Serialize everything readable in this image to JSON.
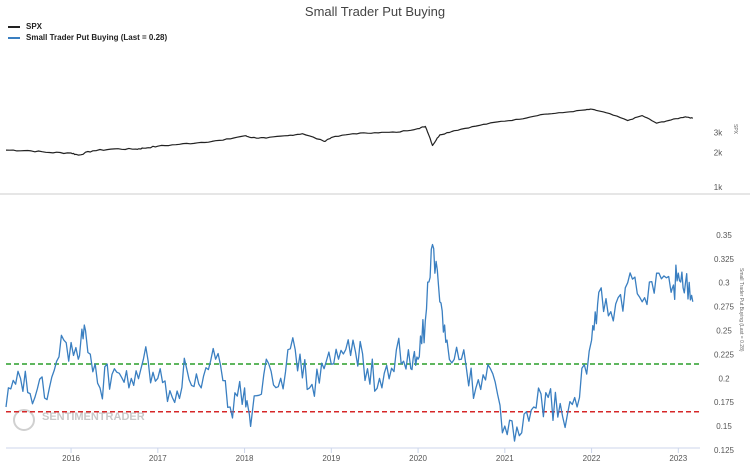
{
  "chart_data": [
    {
      "type": "line",
      "title": "Small Trader Put Buying",
      "series": [
        {
          "name": "SPX",
          "color": "#222222",
          "x": [
            "2015-04",
            "2015-07",
            "2015-10",
            "2016-01",
            "2016-02",
            "2016-04",
            "2016-07",
            "2016-10",
            "2016-11",
            "2017-01",
            "2017-04",
            "2017-07",
            "2017-10",
            "2018-01",
            "2018-02",
            "2018-04",
            "2018-07",
            "2018-09",
            "2018-12",
            "2019-01",
            "2019-04",
            "2019-07",
            "2019-10",
            "2020-01",
            "2020-02",
            "2020-03",
            "2020-04",
            "2020-06",
            "2020-09",
            "2020-12",
            "2021-03",
            "2021-06",
            "2021-09",
            "2021-12",
            "2022-01",
            "2022-03",
            "2022-06",
            "2022-08",
            "2022-10",
            "2022-12",
            "2023-02",
            "2023-03"
          ],
          "values": [
            2100,
            2080,
            2000,
            1980,
            1900,
            2070,
            2150,
            2140,
            2180,
            2270,
            2360,
            2450,
            2560,
            2800,
            2700,
            2670,
            2810,
            2920,
            2500,
            2700,
            2920,
            2980,
            3000,
            3230,
            3380,
            2300,
            2850,
            3100,
            3400,
            3700,
            3900,
            4280,
            4450,
            4700,
            4770,
            4450,
            3800,
            4200,
            3600,
            3850,
            4100,
            3980
          ],
          "axis": {
            "ticks": [
              1000,
              2000,
              3000
            ],
            "tick_labels": [
              "1k",
              "2k",
              "3k"
            ],
            "log_scale": true,
            "label": "SPX"
          }
        },
        {
          "name": "Small Trader Put Buying (Last = 0.28)",
          "color": "#3a7fc1",
          "last_value": 0.28,
          "x": [
            "2015-04",
            "2015-06",
            "2015-08",
            "2015-10",
            "2015-12",
            "2016-02",
            "2016-03",
            "2016-05",
            "2016-07",
            "2016-09",
            "2016-11",
            "2017-01",
            "2017-03",
            "2017-05",
            "2017-07",
            "2017-09",
            "2017-11",
            "2018-01",
            "2018-02",
            "2018-04",
            "2018-06",
            "2018-08",
            "2018-10",
            "2018-12",
            "2019-02",
            "2019-04",
            "2019-06",
            "2019-08",
            "2019-10",
            "2019-12",
            "2020-01",
            "2020-02",
            "2020-03",
            "2020-04",
            "2020-05",
            "2020-07",
            "2020-09",
            "2020-11",
            "2021-01",
            "2021-03",
            "2021-05",
            "2021-07",
            "2021-09",
            "2021-11",
            "2022-01",
            "2022-02",
            "2022-04",
            "2022-06",
            "2022-08",
            "2022-10",
            "2022-12",
            "2023-01",
            "2023-02",
            "2023-03"
          ],
          "values": [
            0.17,
            0.2,
            0.18,
            0.19,
            0.24,
            0.22,
            0.25,
            0.19,
            0.21,
            0.19,
            0.22,
            0.2,
            0.18,
            0.21,
            0.19,
            0.22,
            0.17,
            0.19,
            0.16,
            0.22,
            0.2,
            0.23,
            0.19,
            0.21,
            0.22,
            0.24,
            0.21,
            0.19,
            0.23,
            0.21,
            0.22,
            0.26,
            0.34,
            0.28,
            0.24,
            0.22,
            0.19,
            0.21,
            0.15,
            0.14,
            0.17,
            0.18,
            0.16,
            0.17,
            0.24,
            0.29,
            0.26,
            0.3,
            0.28,
            0.31,
            0.29,
            0.31,
            0.3,
            0.28
          ],
          "axis": {
            "ticks": [
              0.125,
              0.15,
              0.175,
              0.2,
              0.225,
              0.25,
              0.275,
              0.3,
              0.325,
              0.35
            ],
            "tick_labels": [
              "0.125",
              "0.15",
              "0.175",
              "0.2",
              "0.225",
              "0.25",
              "0.275",
              "0.3",
              "0.325",
              "0.35"
            ],
            "label": "Small Trader Put Buying (Last = 0.28)"
          }
        }
      ],
      "reference_lines": [
        {
          "value": 0.215,
          "color": "#2a9d2a",
          "style": "dashed"
        },
        {
          "value": 0.165,
          "color": "#d62728",
          "style": "dashed"
        }
      ],
      "x_axis": {
        "start": "2015-04",
        "end": "2023-04",
        "tick_labels": [
          "2016",
          "2017",
          "2018",
          "2019",
          "2020",
          "2021",
          "2022",
          "2023"
        ]
      },
      "legend_placement": "top-left",
      "grid": false,
      "watermark": "SENTIMENTRADER"
    }
  ]
}
